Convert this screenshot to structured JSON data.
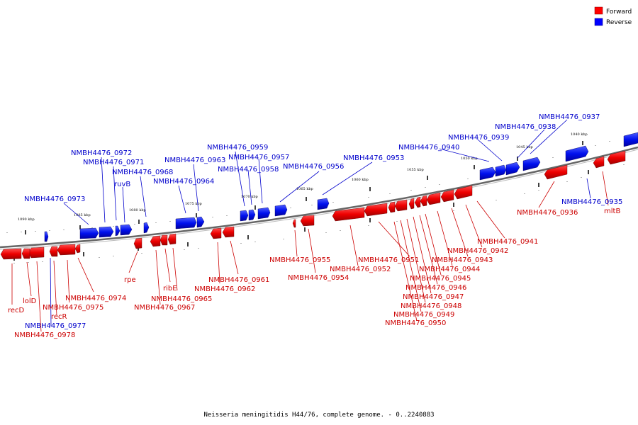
{
  "colors": {
    "forward": "#ff0000",
    "reverse": "#0000ff",
    "forward_label": "#cc0000",
    "reverse_label": "#0000cc"
  },
  "legend": {
    "forward": "Forward",
    "reverse": "Reverse"
  },
  "footer": "Neisseria meningitidis H44/76, complete genome. - 0..2240883",
  "ticks": [
    "1040 kbp",
    "1045 kbp",
    "1050 kbp",
    "1055 kbp",
    "1060 kbp",
    "1065 kbp",
    "1070 kbp",
    "1075 kbp",
    "1080 kbp",
    "1085 kbp",
    "1090 kbp"
  ],
  "genes": {
    "NMBH4476_0937": "NMBH4476_0937",
    "NMBH4476_0938": "NMBH4476_0938",
    "NMBH4476_0939": "NMBH4476_0939",
    "NMBH4476_0940": "NMBH4476_0940",
    "NMBH4476_0953": "NMBH4476_0953",
    "NMBH4476_0956": "NMBH4476_0956",
    "NMBH4476_0957": "NMBH4476_0957",
    "NMBH4476_0958": "NMBH4476_0958",
    "NMBH4476_0959": "NMBH4476_0959",
    "NMBH4476_0963": "NMBH4476_0963",
    "NMBH4476_0964": "NMBH4476_0964",
    "NMBH4476_0968": "NMBH4476_0968",
    "ruvB": "ruvB",
    "NMBH4476_0971": "NMBH4476_0971",
    "NMBH4476_0972": "NMBH4476_0972",
    "NMBH4476_0973": "NMBH4476_0973",
    "NMBH4476_0935": "NMBH4476_0935",
    "NMBH4476_0977": "NMBH4476_0977",
    "recR": "recR",
    "mltB": "mltB",
    "NMBH4476_0936": "NMBH4476_0936",
    "NMBH4476_0941": "NMBH4476_0941",
    "NMBH4476_0942": "NMBH4476_0942",
    "NMBH4476_0943": "NMBH4476_0943",
    "NMBH4476_0944": "NMBH4476_0944",
    "NMBH4476_0945": "NMBH4476_0945",
    "NMBH4476_0946": "NMBH4476_0946",
    "NMBH4476_0947": "NMBH4476_0947",
    "NMBH4476_0948": "NMBH4476_0948",
    "NMBH4476_0949": "NMBH4476_0949",
    "NMBH4476_0950": "NMBH4476_0950",
    "NMBH4476_0951": "NMBH4476_0951",
    "NMBH4476_0952": "NMBH4476_0952",
    "NMBH4476_0954": "NMBH4476_0954",
    "NMBH4476_0955": "NMBH4476_0955",
    "NMBH4476_0961": "NMBH4476_0961",
    "NMBH4476_0962": "NMBH4476_0962",
    "ribE": "ribE",
    "NMBH4476_0965": "NMBH4476_0965",
    "NMBH4476_0967": "NMBH4476_0967",
    "rpe": "rpe",
    "NMBH4476_0974": "NMBH4476_0974",
    "NMBH4476_0975": "NMBH4476_0975",
    "lolD": "lolD",
    "recD": "recD",
    "NMBH4476_0978": "NMBH4476_0978"
  }
}
